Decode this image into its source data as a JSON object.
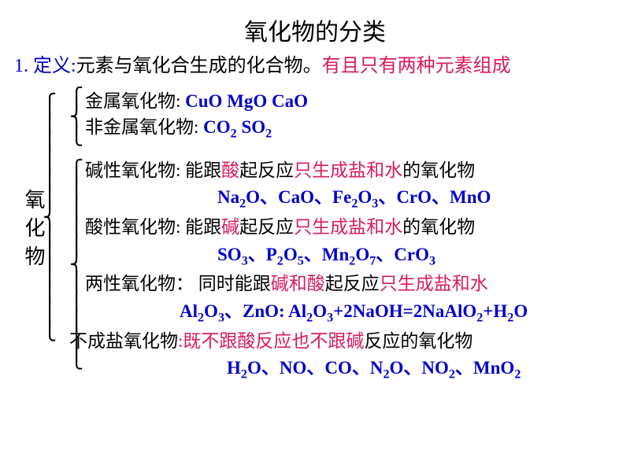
{
  "colors": {
    "blue": "#0000c8",
    "red": "#d81b60",
    "black": "#000000",
    "background": "#ffffff"
  },
  "fonts": {
    "body": "SimSun",
    "formula": "Times New Roman",
    "title_size": 30,
    "body_size": 23,
    "def_size": 24
  },
  "title": "氧化物的分类",
  "definition": {
    "num": "1.",
    "label": "定义:",
    "text_black": "元素与氧化合生成的化合物。",
    "text_red": "有且只有两种元素组成"
  },
  "root_label": "氧化物",
  "group1": {
    "rows": [
      {
        "label": "金属氧化物:",
        "formulas": "CuO  MgO  CaO"
      },
      {
        "label": "非金属氧化物:",
        "formulas": "  CO₂  SO₂"
      }
    ]
  },
  "group2": {
    "basic": {
      "label": "碱性氧化物:",
      "pre": "能跟",
      "red1": "酸",
      "mid": "起反应",
      "red2": "只生成盐和水",
      "post": "的氧化物",
      "formulas": "Na₂O、CaO、Fe₂O₃、CrO、MnO"
    },
    "acidic": {
      "label": "酸性氧化物:",
      "pre": "能跟",
      "red1": "碱",
      "mid": "起反应",
      "red2": "只生成盐和水",
      "post": "的氧化物",
      "formulas": "SO₃、P₂O₅、Mn₂O₇、CrO₃"
    },
    "amphoteric": {
      "label": "两性氧化物",
      "colon": "：",
      "pre": "同时能跟",
      "red1": "碱和酸",
      "mid": "起反应",
      "red2": "只生成盐和水",
      "formulas": "Al₂O₃、ZnO: Al₂O₃+2NaOH=2NaAlO₂+H₂O"
    },
    "nonsalt": {
      "label": "不成盐氧化物",
      "colon": ":",
      "red1": "既不跟酸反应也不跟碱",
      "post": "反应的氧化物",
      "formulas": "H₂O、NO、CO、N₂O、NO₂、MnO₂"
    }
  }
}
